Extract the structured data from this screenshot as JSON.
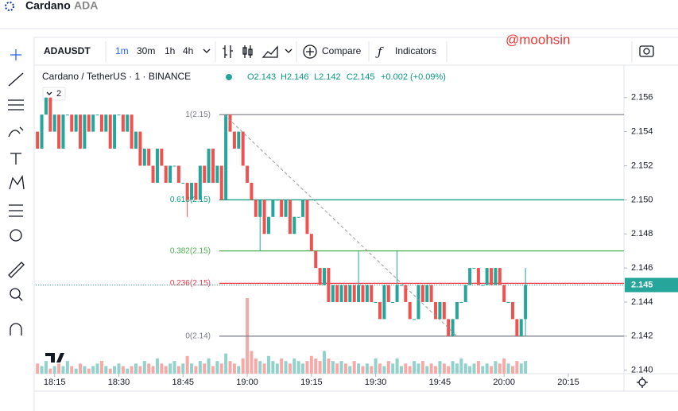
{
  "header": {
    "title": "Cardano",
    "subtitle": "ADA"
  },
  "toolbar": {
    "symbol": "ADAUSDT",
    "intervals": [
      "1m",
      "30m",
      "1h",
      "4h"
    ],
    "compare": "Compare",
    "indicators": "Indicators"
  },
  "chart_data": {
    "type": "candlestick",
    "legend": {
      "symbol": "Cardano / TetherUS · 1 · BINANCE",
      "ohlc": [
        "O2.143",
        "H2.146",
        "L2.142",
        "C2.145"
      ],
      "change": "+0.002 (+0.09%)"
    },
    "indicator_count": "2",
    "watermark": "@moohsin",
    "up_color": "#26a69a",
    "down_color": "#ef5350",
    "up_volume_color": "#92d2cc",
    "down_volume_color": "#f7a9a7",
    "x": [
      1091,
      1092,
      1093,
      1094,
      1095,
      1096,
      1097,
      1098,
      1099,
      1100,
      1101,
      1102,
      1103,
      1104,
      1105,
      1106,
      1107,
      1108,
      1109,
      1110,
      1111,
      1112,
      1113,
      1114,
      1115,
      1116,
      1117,
      1118,
      1119,
      1120,
      1121,
      1122,
      1123,
      1124,
      1125,
      1126,
      1127,
      1128,
      1129,
      1130,
      1131,
      1132,
      1133,
      1134,
      1135,
      1136,
      1137,
      1138,
      1139,
      1140,
      1141,
      1142,
      1143,
      1144,
      1145,
      1146,
      1147,
      1148,
      1149,
      1150,
      1151,
      1152,
      1153,
      1154,
      1155,
      1156,
      1157,
      1158,
      1159,
      1160,
      1161,
      1162,
      1163,
      1164,
      1165,
      1166,
      1167,
      1168,
      1169,
      1170,
      1171,
      1172,
      1173,
      1174,
      1175,
      1176,
      1177,
      1178,
      1179,
      1180,
      1181,
      1182,
      1183,
      1184,
      1185,
      1186,
      1187,
      1188,
      1189,
      1190,
      1191,
      1192,
      1193,
      1194,
      1195,
      1196,
      1197,
      1198,
      1199,
      1200,
      1201,
      1202,
      1203,
      1204,
      1205
    ],
    "open": [
      2.154,
      2.153,
      2.155,
      2.156,
      2.154,
      2.155,
      2.153,
      2.155,
      2.155,
      2.154,
      2.155,
      2.153,
      2.155,
      2.154,
      2.155,
      2.155,
      2.154,
      2.155,
      2.153,
      2.155,
      2.155,
      2.154,
      2.155,
      2.153,
      2.154,
      2.152,
      2.153,
      2.152,
      2.151,
      2.153,
      2.152,
      2.151,
      2.152,
      2.152,
      2.151,
      2.151,
      2.15,
      2.151,
      2.15,
      2.152,
      2.151,
      2.153,
      2.151,
      2.152,
      2.15,
      2.155,
      2.154,
      2.153,
      2.154,
      2.152,
      2.151,
      2.15,
      2.149,
      2.15,
      2.148,
      2.149,
      2.15,
      2.15,
      2.149,
      2.15,
      2.148,
      2.149,
      2.149,
      2.15,
      2.148,
      2.147,
      2.146,
      2.145,
      2.146,
      2.144,
      2.145,
      2.144,
      2.145,
      2.144,
      2.145,
      2.144,
      2.145,
      2.144,
      2.145,
      2.144,
      2.144,
      2.143,
      2.145,
      2.144,
      2.144,
      2.145,
      2.145,
      2.144,
      2.143,
      2.143,
      2.145,
      2.144,
      2.145,
      2.144,
      2.143,
      2.144,
      2.143,
      2.142,
      2.143,
      2.144,
      2.144,
      2.145,
      2.146,
      2.146,
      2.145,
      2.145,
      2.146,
      2.145,
      2.146,
      2.145,
      2.144,
      2.144,
      2.143,
      2.142,
      2.143
    ],
    "high": [
      2.154,
      2.155,
      2.156,
      2.156,
      2.155,
      2.155,
      2.155,
      2.155,
      2.155,
      2.155,
      2.155,
      2.155,
      2.155,
      2.155,
      2.155,
      2.155,
      2.155,
      2.155,
      2.155,
      2.155,
      2.155,
      2.155,
      2.155,
      2.154,
      2.154,
      2.153,
      2.153,
      2.152,
      2.153,
      2.153,
      2.152,
      2.152,
      2.152,
      2.152,
      2.151,
      2.151,
      2.151,
      2.151,
      2.152,
      2.152,
      2.153,
      2.153,
      2.152,
      2.152,
      2.155,
      2.155,
      2.154,
      2.154,
      2.154,
      2.152,
      2.151,
      2.15,
      2.15,
      2.15,
      2.149,
      2.15,
      2.15,
      2.15,
      2.15,
      2.15,
      2.149,
      2.149,
      2.15,
      2.15,
      2.148,
      2.147,
      2.146,
      2.146,
      2.146,
      2.145,
      2.145,
      2.145,
      2.145,
      2.145,
      2.145,
      2.147,
      2.145,
      2.145,
      2.145,
      2.144,
      2.144,
      2.145,
      2.145,
      2.144,
      2.147,
      2.145,
      2.145,
      2.144,
      2.143,
      2.145,
      2.145,
      2.145,
      2.145,
      2.144,
      2.144,
      2.144,
      2.143,
      2.143,
      2.144,
      2.144,
      2.145,
      2.146,
      2.146,
      2.146,
      2.145,
      2.146,
      2.146,
      2.146,
      2.146,
      2.145,
      2.144,
      2.144,
      2.143,
      2.143,
      2.146
    ],
    "low": [
      2.153,
      2.153,
      2.155,
      2.154,
      2.154,
      2.153,
      2.153,
      2.155,
      2.154,
      2.154,
      2.153,
      2.153,
      2.154,
      2.154,
      2.155,
      2.154,
      2.154,
      2.153,
      2.153,
      2.155,
      2.154,
      2.154,
      2.153,
      2.153,
      2.152,
      2.152,
      2.152,
      2.151,
      2.151,
      2.152,
      2.151,
      2.151,
      2.152,
      2.151,
      2.151,
      2.149,
      2.15,
      2.15,
      2.15,
      2.151,
      2.151,
      2.151,
      2.151,
      2.15,
      2.15,
      2.154,
      2.153,
      2.153,
      2.152,
      2.151,
      2.15,
      2.149,
      2.147,
      2.148,
      2.148,
      2.149,
      2.15,
      2.149,
      2.149,
      2.148,
      2.148,
      2.149,
      2.149,
      2.148,
      2.147,
      2.146,
      2.145,
      2.145,
      2.144,
      2.144,
      2.144,
      2.144,
      2.144,
      2.144,
      2.144,
      2.144,
      2.144,
      2.144,
      2.144,
      2.144,
      2.143,
      2.143,
      2.144,
      2.144,
      2.144,
      2.145,
      2.144,
      2.143,
      2.143,
      2.143,
      2.144,
      2.144,
      2.144,
      2.143,
      2.143,
      2.143,
      2.142,
      2.142,
      2.143,
      2.144,
      2.144,
      2.145,
      2.146,
      2.145,
      2.145,
      2.145,
      2.145,
      2.145,
      2.145,
      2.144,
      2.144,
      2.143,
      2.142,
      2.142,
      2.142
    ],
    "close": [
      2.153,
      2.155,
      2.156,
      2.154,
      2.155,
      2.153,
      2.155,
      2.155,
      2.154,
      2.155,
      2.153,
      2.155,
      2.154,
      2.155,
      2.155,
      2.154,
      2.155,
      2.153,
      2.155,
      2.155,
      2.154,
      2.155,
      2.153,
      2.154,
      2.152,
      2.153,
      2.152,
      2.151,
      2.153,
      2.152,
      2.151,
      2.152,
      2.152,
      2.151,
      2.151,
      2.15,
      2.151,
      2.15,
      2.152,
      2.151,
      2.153,
      2.151,
      2.152,
      2.15,
      2.155,
      2.154,
      2.153,
      2.154,
      2.152,
      2.151,
      2.15,
      2.149,
      2.15,
      2.148,
      2.149,
      2.15,
      2.15,
      2.149,
      2.15,
      2.148,
      2.149,
      2.149,
      2.15,
      2.148,
      2.147,
      2.146,
      2.145,
      2.146,
      2.144,
      2.145,
      2.144,
      2.145,
      2.144,
      2.145,
      2.144,
      2.145,
      2.144,
      2.145,
      2.144,
      2.144,
      2.143,
      2.145,
      2.144,
      2.144,
      2.145,
      2.145,
      2.144,
      2.143,
      2.143,
      2.145,
      2.144,
      2.145,
      2.144,
      2.143,
      2.144,
      2.143,
      2.142,
      2.143,
      2.144,
      2.144,
      2.145,
      2.146,
      2.146,
      2.145,
      2.145,
      2.146,
      2.145,
      2.146,
      2.145,
      2.144,
      2.144,
      2.143,
      2.142,
      2.143,
      2.145
    ],
    "volume": [
      4,
      3,
      5,
      2,
      3,
      4,
      3,
      5,
      3,
      2,
      4,
      3,
      2,
      3,
      4,
      5,
      3,
      2,
      3,
      4,
      3,
      2,
      3,
      4,
      3,
      5,
      4,
      3,
      6,
      4,
      3,
      4,
      5,
      3,
      4,
      7,
      4,
      3,
      5,
      4,
      6,
      3,
      5,
      4,
      8,
      5,
      4,
      3,
      6,
      30,
      9,
      6,
      5,
      4,
      7,
      5,
      4,
      6,
      5,
      4,
      6,
      5,
      4,
      5,
      7,
      6,
      5,
      9,
      6,
      5,
      4,
      5,
      4,
      3,
      5,
      4,
      3,
      4,
      3,
      6,
      4,
      3,
      5,
      4,
      6,
      3,
      4,
      3,
      5,
      4,
      5,
      3,
      4,
      3,
      5,
      4,
      3,
      5,
      4,
      6,
      4,
      3,
      4,
      5,
      3,
      4,
      3,
      5,
      4,
      6,
      4,
      3,
      5,
      4,
      5
    ],
    "xlim": [
      1090.6,
      1228
    ],
    "ylim": [
      2.1398,
      2.1579
    ],
    "xticks": [
      {
        "value": 1095,
        "label": "18:15"
      },
      {
        "value": 1110,
        "label": "18:30"
      },
      {
        "value": 1125,
        "label": "18:45"
      },
      {
        "value": 1140,
        "label": "19:00"
      },
      {
        "value": 1155,
        "label": "19:15"
      },
      {
        "value": 1170,
        "label": "19:30"
      },
      {
        "value": 1185,
        "label": "19:45"
      },
      {
        "value": 1200,
        "label": "20:00"
      },
      {
        "value": 1215,
        "label": "20:15"
      }
    ],
    "yticks": [
      {
        "value": 2.14,
        "label": "2.140"
      },
      2.142,
      2.144,
      2.146,
      2.148,
      {
        "value": 2.15,
        "label": "2.150"
      },
      2.152,
      2.154,
      2.156
    ],
    "fib_levels": [
      {
        "label": "1(2.15)",
        "value": 2.155,
        "color": "#787b86"
      },
      {
        "label": "0.618(2.15)",
        "value": 2.15,
        "color": "#089981"
      },
      {
        "label": "0.382(2.15)",
        "value": 2.147,
        "color": "#4caf50"
      },
      {
        "label": "0.236(2.15)",
        "value": 2.1451,
        "color": "#f23645"
      },
      {
        "label": "0(2.14)",
        "value": 2.142,
        "color": "#787b86"
      }
    ],
    "trendline": {
      "x": [
        1134.6,
        1189
      ],
      "y": [
        2.155,
        2.142
      ]
    },
    "last_price": 2.145,
    "last_price_color": "#26a69a"
  }
}
